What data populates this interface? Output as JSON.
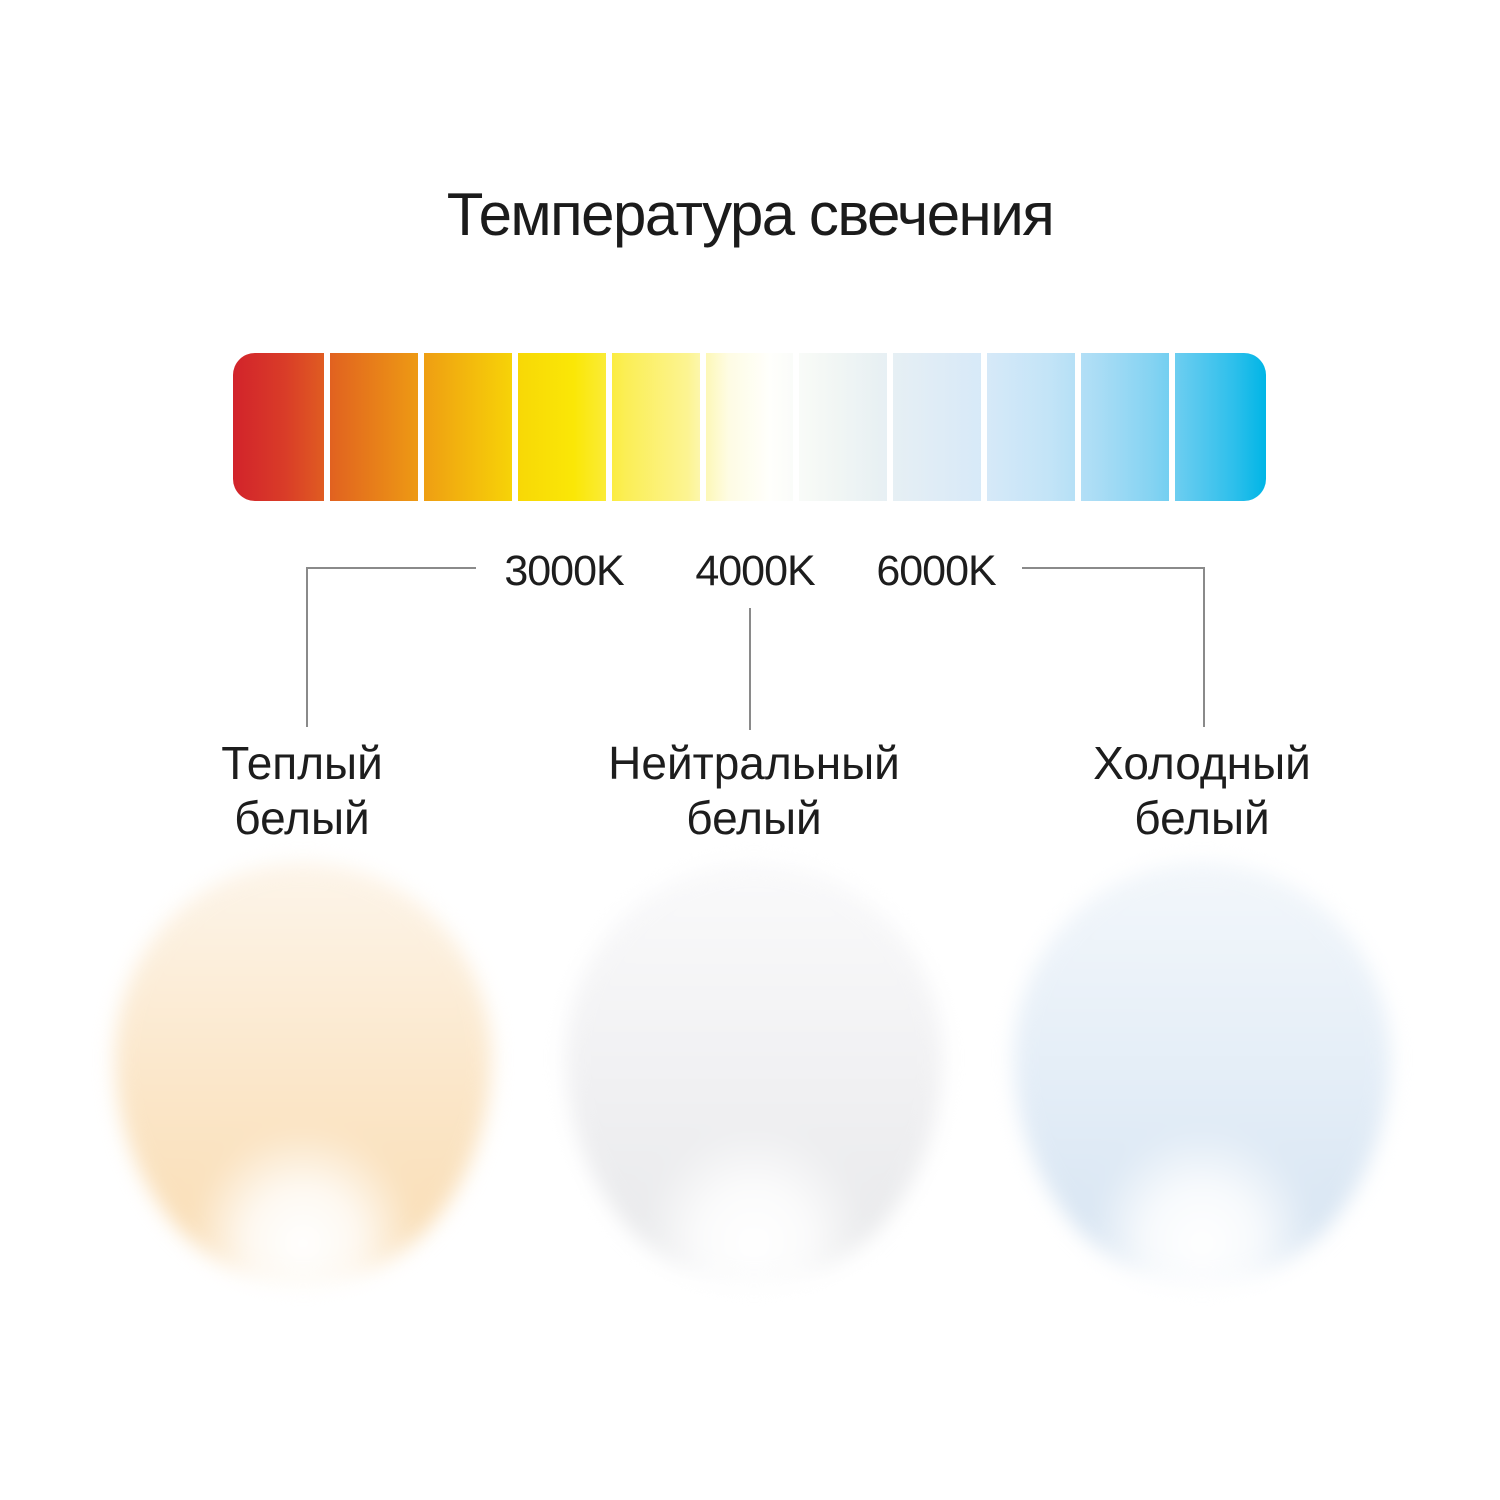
{
  "title": "Температура свечения",
  "scale": {
    "segment_count": 11,
    "separator_color": "#ffffff",
    "gradient_stops": [
      {
        "pos": 0,
        "color": "#d2232b"
      },
      {
        "pos": 5,
        "color": "#d93c28"
      },
      {
        "pos": 10,
        "color": "#e2661f"
      },
      {
        "pos": 19,
        "color": "#efa112"
      },
      {
        "pos": 28,
        "color": "#f8d906"
      },
      {
        "pos": 33,
        "color": "#fae706"
      },
      {
        "pos": 38,
        "color": "#fbee55"
      },
      {
        "pos": 44,
        "color": "#fcf492"
      },
      {
        "pos": 48,
        "color": "#fefce4"
      },
      {
        "pos": 52,
        "color": "#fffffc"
      },
      {
        "pos": 57,
        "color": "#f4f8f5"
      },
      {
        "pos": 62,
        "color": "#e9f1f3"
      },
      {
        "pos": 68,
        "color": "#dfecf6"
      },
      {
        "pos": 73,
        "color": "#d6e9f8"
      },
      {
        "pos": 79,
        "color": "#c3e4f7"
      },
      {
        "pos": 84,
        "color": "#a8dcf5"
      },
      {
        "pos": 89,
        "color": "#84d3f2"
      },
      {
        "pos": 93,
        "color": "#5ac9ef"
      },
      {
        "pos": 97,
        "color": "#2cbfeb"
      },
      {
        "pos": 100,
        "color": "#00b5e6"
      }
    ],
    "labels": [
      {
        "text": "3000K"
      },
      {
        "text": "4000K"
      },
      {
        "text": "6000K"
      }
    ]
  },
  "connector_color": "#8a8a8a",
  "categories": [
    {
      "line1": "Теплый",
      "line2": "белый"
    },
    {
      "line1": "Нейтральный",
      "line2": "белый"
    },
    {
      "line1": "Холодный",
      "line2": "белый"
    }
  ],
  "glows": [
    {
      "name": "warm-white",
      "top": "#fdf5ea",
      "mid": "#fbe6c8",
      "bottom": "#f9dcb2",
      "hotspot": "#ffffff"
    },
    {
      "name": "neutral-white",
      "top": "#fafafb",
      "mid": "#f0f0f2",
      "bottom": "#e7e8ea",
      "hotspot": "#ffffff"
    },
    {
      "name": "cool-white",
      "top": "#f3f7fb",
      "mid": "#e3edf7",
      "bottom": "#d5e3f1",
      "hotspot": "#ffffff"
    }
  ]
}
